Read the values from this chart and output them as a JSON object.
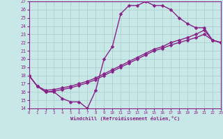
{
  "xlabel": "Windchill (Refroidissement éolien,°C)",
  "xlim": [
    0,
    23
  ],
  "ylim": [
    14,
    27
  ],
  "xticks": [
    0,
    1,
    2,
    3,
    4,
    5,
    6,
    7,
    8,
    9,
    10,
    11,
    12,
    13,
    14,
    15,
    16,
    17,
    18,
    19,
    20,
    21,
    22,
    23
  ],
  "yticks": [
    14,
    15,
    16,
    17,
    18,
    19,
    20,
    21,
    22,
    23,
    24,
    25,
    26,
    27
  ],
  "bg_color": "#c8e8e8",
  "grid_color": "#a8cccc",
  "line_color": "#882288",
  "line_width": 1.0,
  "marker": "D",
  "marker_size": 2.5,
  "curve1_x": [
    0,
    1,
    2,
    3,
    4,
    5,
    6,
    7,
    8,
    9,
    10,
    11,
    12,
    13,
    14,
    15,
    16,
    17,
    18,
    19,
    20,
    21,
    22,
    23
  ],
  "curve1_y": [
    18,
    16.7,
    16,
    16,
    15.2,
    14.8,
    14.8,
    14,
    16.2,
    20,
    21.5,
    25.5,
    26.5,
    26.5,
    27,
    26.5,
    26.5,
    26,
    25,
    24.3,
    23.8,
    23.8,
    22.3,
    22
  ],
  "curve2_x": [
    0,
    1,
    2,
    3,
    4,
    5,
    6,
    7,
    8,
    9,
    10,
    11,
    12,
    13,
    14,
    15,
    16,
    17,
    18,
    19,
    20,
    21,
    22,
    23
  ],
  "curve2_y": [
    18,
    16.7,
    16.2,
    16.3,
    16.5,
    16.7,
    17.0,
    17.3,
    17.7,
    18.2,
    18.7,
    19.2,
    19.7,
    20.2,
    20.7,
    21.2,
    21.5,
    22.0,
    22.3,
    22.6,
    23.0,
    23.5,
    22.3,
    22
  ],
  "curve3_x": [
    0,
    1,
    2,
    3,
    4,
    5,
    6,
    7,
    8,
    9,
    10,
    11,
    12,
    13,
    14,
    15,
    16,
    17,
    18,
    19,
    20,
    21,
    22,
    23
  ],
  "curve3_y": [
    18,
    16.7,
    16.0,
    16.1,
    16.3,
    16.5,
    16.8,
    17.1,
    17.5,
    18.0,
    18.5,
    19.0,
    19.5,
    20.0,
    20.5,
    21.0,
    21.3,
    21.7,
    22.0,
    22.3,
    22.6,
    23.0,
    22.3,
    22
  ]
}
